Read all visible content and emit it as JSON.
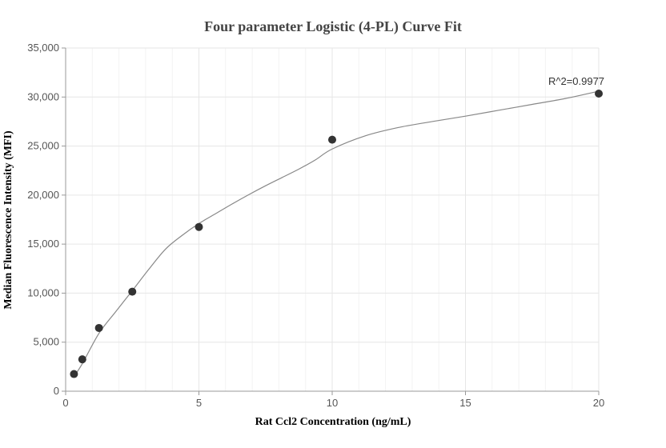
{
  "chart_data": {
    "type": "scatter",
    "title": "Four parameter Logistic (4-PL) Curve Fit",
    "xlabel": "Rat Ccl2 Concentration (ng/mL)",
    "ylabel": "Median Fluorescence Intensity (MFI)",
    "xlim": [
      0,
      20
    ],
    "ylim": [
      0,
      35000
    ],
    "x_ticks": [
      0,
      5,
      10,
      15,
      20
    ],
    "x_tick_labels": [
      "0",
      "5",
      "10",
      "15",
      "20"
    ],
    "y_ticks": [
      0,
      5000,
      10000,
      15000,
      20000,
      25000,
      30000,
      35000
    ],
    "y_tick_labels": [
      "0",
      "5,000",
      "10,000",
      "15,000",
      "20,000",
      "25,000",
      "30,000",
      "35,000"
    ],
    "grid": true,
    "series": [
      {
        "points": [
          {
            "x": 0.3125,
            "y": 1750
          },
          {
            "x": 0.625,
            "y": 3250
          },
          {
            "x": 1.25,
            "y": 6450
          },
          {
            "x": 2.5,
            "y": 10150
          },
          {
            "x": 5,
            "y": 16750
          },
          {
            "x": 10,
            "y": 25650
          },
          {
            "x": 20,
            "y": 30350
          }
        ]
      }
    ],
    "fit_curve": {
      "x": [
        0.3125,
        0.625,
        1.25,
        1.875,
        2.5,
        3.125,
        3.75,
        4.375,
        5,
        5.625,
        6.25,
        6.875,
        7.5,
        8.125,
        8.75,
        9.375,
        10,
        11.25,
        12.5,
        13.75,
        15,
        16.25,
        17.5,
        18.75,
        20
      ],
      "y": [
        1500,
        2800,
        5900,
        8100,
        10250,
        12450,
        14500,
        15900,
        17100,
        18100,
        19100,
        20050,
        20950,
        21800,
        22650,
        23600,
        24700,
        26050,
        26900,
        27500,
        28050,
        28650,
        29250,
        29850,
        30600
      ]
    },
    "annotation": "R^2=0.9977",
    "colors": {
      "point": "#333333",
      "fit_line": "#888888",
      "grid_major": "#e6e6e6",
      "grid_minor": "#f3f3f3",
      "axis": "#999999"
    }
  }
}
